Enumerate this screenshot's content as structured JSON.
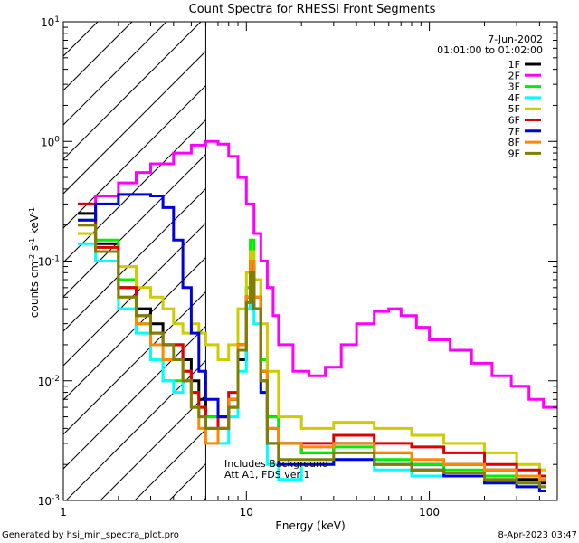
{
  "chart_data": {
    "type": "line",
    "title": "Count Spectra for RHESSI Front Segments",
    "xlabel": "Energy (keV)",
    "ylabel_parts": {
      "base": "counts cm",
      "sup1": "-2",
      "mid1": " s",
      "sup2": "-1",
      "mid2": " keV",
      "sup3": "-1"
    },
    "x_scale": "log",
    "y_scale": "log",
    "xlim": [
      1,
      500
    ],
    "ylim": [
      0.001,
      10
    ],
    "x_ticks": [
      {
        "value": 1,
        "label": "1"
      },
      {
        "value": 10,
        "label": "10"
      },
      {
        "value": 100,
        "label": "100"
      }
    ],
    "y_ticks": [
      {
        "value": 0.001,
        "base": "10",
        "exp": "-3"
      },
      {
        "value": 0.01,
        "base": "10",
        "exp": "-2"
      },
      {
        "value": 0.1,
        "base": "10",
        "exp": "-1"
      },
      {
        "value": 1,
        "base": "10",
        "exp": "0"
      },
      {
        "value": 10,
        "base": "10",
        "exp": "1"
      }
    ],
    "hatched_region_xmax": 6,
    "date": "7-Jun-2002",
    "time_range": "01:01:00 to 01:02:00",
    "annotation_lines": [
      "Includes Background",
      "Att A1, FDS ver 1"
    ],
    "footer_left": "Generated by hsi_min_spectra_plot.pro",
    "footer_right": "8-Apr-2023 03:47",
    "series": [
      {
        "name": "1F",
        "color": "#000000",
        "points": [
          [
            1.2,
            0.25
          ],
          [
            1.5,
            0.14
          ],
          [
            2,
            0.06
          ],
          [
            2.5,
            0.04
          ],
          [
            3,
            0.03
          ],
          [
            3.5,
            0.02
          ],
          [
            4,
            0.02
          ],
          [
            4.5,
            0.015
          ],
          [
            5,
            0.01
          ],
          [
            5.5,
            0.007
          ],
          [
            6,
            0.005
          ],
          [
            7,
            0.004
          ],
          [
            8,
            0.006
          ],
          [
            9,
            0.015
          ],
          [
            10,
            0.04
          ],
          [
            10.5,
            0.07
          ],
          [
            11,
            0.04
          ],
          [
            12,
            0.012
          ],
          [
            13,
            0.005
          ],
          [
            15,
            0.003
          ],
          [
            20,
            0.0025
          ],
          [
            30,
            0.003
          ],
          [
            50,
            0.0025
          ],
          [
            80,
            0.002
          ],
          [
            120,
            0.002
          ],
          [
            200,
            0.0018
          ],
          [
            300,
            0.0015
          ],
          [
            400,
            0.0014
          ]
        ]
      },
      {
        "name": "2F",
        "color": "#ff00ff",
        "points": [
          [
            1.2,
            0.3
          ],
          [
            1.5,
            0.35
          ],
          [
            2,
            0.45
          ],
          [
            2.5,
            0.55
          ],
          [
            3,
            0.65
          ],
          [
            4,
            0.8
          ],
          [
            5,
            0.93
          ],
          [
            6,
            1.0
          ],
          [
            7,
            0.95
          ],
          [
            8,
            0.75
          ],
          [
            9,
            0.5
          ],
          [
            10,
            0.3
          ],
          [
            11,
            0.17
          ],
          [
            12,
            0.1
          ],
          [
            13,
            0.06
          ],
          [
            14,
            0.035
          ],
          [
            15,
            0.02
          ],
          [
            18,
            0.012
          ],
          [
            22,
            0.011
          ],
          [
            27,
            0.013
          ],
          [
            33,
            0.02
          ],
          [
            40,
            0.03
          ],
          [
            50,
            0.038
          ],
          [
            60,
            0.04
          ],
          [
            70,
            0.035
          ],
          [
            85,
            0.028
          ],
          [
            100,
            0.022
          ],
          [
            130,
            0.018
          ],
          [
            170,
            0.014
          ],
          [
            220,
            0.011
          ],
          [
            280,
            0.009
          ],
          [
            350,
            0.007
          ],
          [
            420,
            0.006
          ],
          [
            500,
            0.006
          ]
        ]
      },
      {
        "name": "3F",
        "color": "#00ee00",
        "points": [
          [
            1.2,
            0.22
          ],
          [
            1.5,
            0.15
          ],
          [
            2,
            0.07
          ],
          [
            2.5,
            0.03
          ],
          [
            3,
            0.015
          ],
          [
            3.5,
            0.01
          ],
          [
            4,
            0.01
          ],
          [
            4.5,
            0.012
          ],
          [
            5,
            0.008
          ],
          [
            5.5,
            0.006
          ],
          [
            6,
            0.005
          ],
          [
            7,
            0.005
          ],
          [
            8,
            0.007
          ],
          [
            9,
            0.02
          ],
          [
            10,
            0.06
          ],
          [
            10.5,
            0.15
          ],
          [
            11,
            0.07
          ],
          [
            12,
            0.015
          ],
          [
            13,
            0.005
          ],
          [
            15,
            0.003
          ],
          [
            20,
            0.0025
          ],
          [
            30,
            0.0028
          ],
          [
            50,
            0.0022
          ],
          [
            80,
            0.002
          ],
          [
            120,
            0.0018
          ],
          [
            200,
            0.0016
          ],
          [
            300,
            0.0014
          ],
          [
            400,
            0.0013
          ]
        ]
      },
      {
        "name": "4F",
        "color": "#00ffff",
        "points": [
          [
            1.2,
            0.14
          ],
          [
            1.5,
            0.1
          ],
          [
            2,
            0.04
          ],
          [
            2.5,
            0.025
          ],
          [
            3,
            0.015
          ],
          [
            3.5,
            0.01
          ],
          [
            4,
            0.008
          ],
          [
            4.5,
            0.01
          ],
          [
            5,
            0.006
          ],
          [
            5.5,
            0.005
          ],
          [
            6,
            0.004
          ],
          [
            7,
            0.003
          ],
          [
            8,
            0.005
          ],
          [
            9,
            0.012
          ],
          [
            10,
            0.04
          ],
          [
            10.5,
            0.07
          ],
          [
            11,
            0.03
          ],
          [
            12,
            0.008
          ],
          [
            13,
            0.002
          ],
          [
            15,
            0.0015
          ],
          [
            20,
            0.002
          ],
          [
            30,
            0.0022
          ],
          [
            50,
            0.0018
          ],
          [
            80,
            0.0016
          ],
          [
            120,
            0.0016
          ],
          [
            200,
            0.0014
          ],
          [
            300,
            0.0013
          ],
          [
            400,
            0.0012
          ]
        ]
      },
      {
        "name": "5F",
        "color": "#cccc00",
        "points": [
          [
            1.2,
            0.17
          ],
          [
            1.5,
            0.13
          ],
          [
            2,
            0.09
          ],
          [
            2.5,
            0.06
          ],
          [
            3,
            0.05
          ],
          [
            3.5,
            0.04
          ],
          [
            4,
            0.03
          ],
          [
            4.5,
            0.025
          ],
          [
            5,
            0.03
          ],
          [
            5.5,
            0.025
          ],
          [
            6,
            0.02
          ],
          [
            7,
            0.015
          ],
          [
            8,
            0.02
          ],
          [
            9,
            0.04
          ],
          [
            10,
            0.08
          ],
          [
            10.5,
            0.12
          ],
          [
            11,
            0.07
          ],
          [
            12,
            0.03
          ],
          [
            13,
            0.012
          ],
          [
            15,
            0.005
          ],
          [
            20,
            0.004
          ],
          [
            30,
            0.0045
          ],
          [
            50,
            0.004
          ],
          [
            80,
            0.0035
          ],
          [
            120,
            0.003
          ],
          [
            200,
            0.0025
          ],
          [
            300,
            0.002
          ],
          [
            400,
            0.0018
          ]
        ]
      },
      {
        "name": "6F",
        "color": "#dd0000",
        "points": [
          [
            1.2,
            0.3
          ],
          [
            1.5,
            0.13
          ],
          [
            2,
            0.06
          ],
          [
            2.5,
            0.035
          ],
          [
            3,
            0.025
          ],
          [
            3.5,
            0.02
          ],
          [
            4,
            0.02
          ],
          [
            4.5,
            0.012
          ],
          [
            5,
            0.008
          ],
          [
            5.5,
            0.006
          ],
          [
            6,
            0.004
          ],
          [
            7,
            0.005
          ],
          [
            8,
            0.008
          ],
          [
            9,
            0.02
          ],
          [
            10,
            0.05
          ],
          [
            10.5,
            0.1
          ],
          [
            11,
            0.05
          ],
          [
            12,
            0.01
          ],
          [
            13,
            0.004
          ],
          [
            15,
            0.003
          ],
          [
            20,
            0.003
          ],
          [
            30,
            0.0035
          ],
          [
            50,
            0.003
          ],
          [
            80,
            0.0028
          ],
          [
            120,
            0.0025
          ],
          [
            200,
            0.002
          ],
          [
            300,
            0.0018
          ],
          [
            400,
            0.0016
          ]
        ]
      },
      {
        "name": "7F",
        "color": "#0000dd",
        "points": [
          [
            1.2,
            0.22
          ],
          [
            1.5,
            0.3
          ],
          [
            2,
            0.36
          ],
          [
            2.5,
            0.36
          ],
          [
            3,
            0.35
          ],
          [
            3.5,
            0.28
          ],
          [
            4,
            0.15
          ],
          [
            4.5,
            0.06
          ],
          [
            5,
            0.025
          ],
          [
            5.5,
            0.012
          ],
          [
            6,
            0.007
          ],
          [
            7,
            0.005
          ],
          [
            8,
            0.007
          ],
          [
            9,
            0.02
          ],
          [
            10,
            0.05
          ],
          [
            10.5,
            0.09
          ],
          [
            11,
            0.04
          ],
          [
            12,
            0.008
          ],
          [
            13,
            0.003
          ],
          [
            15,
            0.002
          ],
          [
            20,
            0.002
          ],
          [
            30,
            0.0022
          ],
          [
            50,
            0.002
          ],
          [
            80,
            0.0018
          ],
          [
            120,
            0.0016
          ],
          [
            200,
            0.0014
          ],
          [
            300,
            0.0013
          ],
          [
            400,
            0.0012
          ]
        ]
      },
      {
        "name": "8F",
        "color": "#ff8800",
        "points": [
          [
            1.2,
            0.2
          ],
          [
            1.5,
            0.12
          ],
          [
            2,
            0.05
          ],
          [
            2.5,
            0.03
          ],
          [
            3,
            0.02
          ],
          [
            3.5,
            0.015
          ],
          [
            4,
            0.015
          ],
          [
            4.5,
            0.01
          ],
          [
            5,
            0.006
          ],
          [
            5.5,
            0.004
          ],
          [
            6,
            0.003
          ],
          [
            7,
            0.004
          ],
          [
            8,
            0.007
          ],
          [
            9,
            0.02
          ],
          [
            10,
            0.05
          ],
          [
            10.5,
            0.1
          ],
          [
            11,
            0.05
          ],
          [
            12,
            0.012
          ],
          [
            13,
            0.004
          ],
          [
            15,
            0.003
          ],
          [
            20,
            0.0028
          ],
          [
            30,
            0.003
          ],
          [
            50,
            0.0025
          ],
          [
            80,
            0.0022
          ],
          [
            120,
            0.002
          ],
          [
            200,
            0.0018
          ],
          [
            300,
            0.0016
          ],
          [
            400,
            0.0015
          ]
        ]
      },
      {
        "name": "9F",
        "color": "#808000",
        "points": [
          [
            1.2,
            0.2
          ],
          [
            1.5,
            0.12
          ],
          [
            2,
            0.05
          ],
          [
            2.5,
            0.035
          ],
          [
            3,
            0.025
          ],
          [
            3.5,
            0.02
          ],
          [
            4,
            0.015
          ],
          [
            4.5,
            0.01
          ],
          [
            5,
            0.006
          ],
          [
            5.5,
            0.005
          ],
          [
            6,
            0.004
          ],
          [
            7,
            0.004
          ],
          [
            8,
            0.006
          ],
          [
            9,
            0.018
          ],
          [
            10,
            0.045
          ],
          [
            10.5,
            0.08
          ],
          [
            11,
            0.04
          ],
          [
            12,
            0.01
          ],
          [
            13,
            0.003
          ],
          [
            15,
            0.0022
          ],
          [
            20,
            0.0022
          ],
          [
            30,
            0.0025
          ],
          [
            50,
            0.002
          ],
          [
            80,
            0.0018
          ],
          [
            120,
            0.0017
          ],
          [
            200,
            0.0015
          ],
          [
            300,
            0.0014
          ],
          [
            400,
            0.0013
          ]
        ]
      }
    ]
  }
}
